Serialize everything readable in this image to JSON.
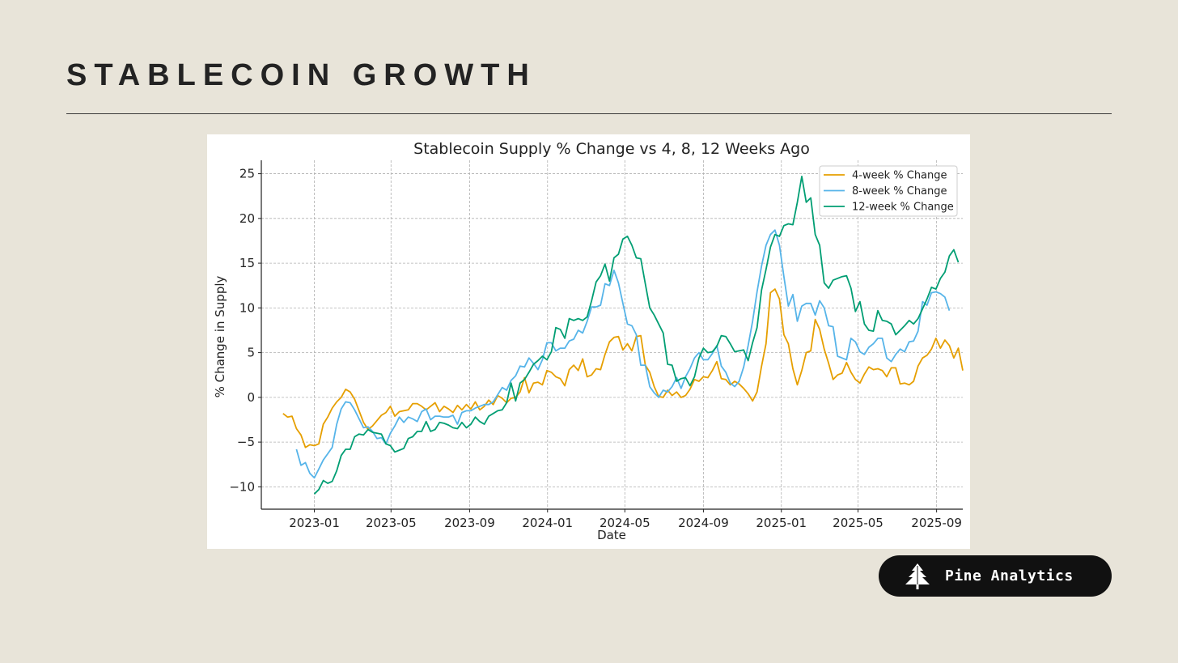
{
  "page": {
    "title": "STABLECOIN GROWTH",
    "brand": "Pine Analytics"
  },
  "colors": {
    "background": "#e8e4d9",
    "series_4w": "#e69f00",
    "series_8w": "#56b4e9",
    "series_12w": "#009e73"
  },
  "chart_data": {
    "type": "line",
    "title": "Stablecoin Supply % Change vs 4, 8, 12 Weeks Ago",
    "xlabel": "Date",
    "ylabel": "% Change in Supply",
    "xlim": [
      "2022-10-10",
      "2025-10-12"
    ],
    "ylim": [
      -12.5,
      26.5
    ],
    "grid": true,
    "legend_position": "top-right",
    "x_ticks": [
      "2023-01",
      "2023-05",
      "2023-09",
      "2024-01",
      "2024-05",
      "2024-09",
      "2025-01",
      "2025-05",
      "2025-09"
    ],
    "y_ticks": [
      -10,
      -5,
      0,
      5,
      10,
      15,
      20,
      25
    ],
    "x_start": "2022-11-13",
    "x_step_days": 7,
    "series": [
      {
        "name": "4-week % Change",
        "color": "#e69f00",
        "start_index": 0,
        "values": [
          -1.8,
          -2.2,
          -2.1,
          -3.5,
          -4.2,
          -5.6,
          -5.3,
          -5.4,
          -5.2,
          -3.0,
          -2.2,
          -1.2,
          -0.5,
          0.0,
          0.9,
          0.6,
          -0.2,
          -1.5,
          -2.8,
          -3.6,
          -3.2,
          -2.6,
          -2.0,
          -1.7,
          -1.0,
          -2.1,
          -1.6,
          -1.5,
          -1.4,
          -0.7,
          -0.7,
          -1.0,
          -1.4,
          -1.0,
          -0.6,
          -1.6,
          -1.0,
          -1.3,
          -1.7,
          -0.9,
          -1.4,
          -0.8,
          -1.3,
          -0.5,
          -1.4,
          -1.0,
          -0.3,
          -0.8,
          0.2,
          -0.1,
          -0.6,
          -0.1,
          0.0,
          0.6,
          2.2,
          0.5,
          1.6,
          1.7,
          1.4,
          3.0,
          2.8,
          2.3,
          2.1,
          1.3,
          3.1,
          3.6,
          3.0,
          4.3,
          2.3,
          2.5,
          3.2,
          3.1,
          4.8,
          6.2,
          6.7,
          6.8,
          5.3,
          6.0,
          5.2,
          6.8,
          6.9,
          3.6,
          2.8,
          1.2,
          0.1,
          0.0,
          0.8,
          0.2,
          0.6,
          0.0,
          0.2,
          0.9,
          2.0,
          1.8,
          2.3,
          2.2,
          3.0,
          4.0,
          2.1,
          2.0,
          1.4,
          1.8,
          1.5,
          1.0,
          0.4,
          -0.4,
          0.6,
          3.5,
          6.0,
          11.7,
          12.1,
          11.0,
          7.0,
          6.0,
          3.2,
          1.4,
          3.0,
          5.0,
          5.2,
          8.7,
          7.6,
          5.4,
          3.8,
          2.0,
          2.5,
          2.7,
          3.9,
          2.8,
          2.0,
          1.6,
          2.6,
          3.4,
          3.1,
          3.2,
          3.0,
          2.3,
          3.3,
          3.3,
          1.5,
          1.6,
          1.4,
          1.8,
          3.5,
          4.4,
          4.7,
          5.4,
          6.6,
          5.5,
          6.4,
          5.8,
          4.4,
          5.5,
          3.0
        ]
      },
      {
        "name": "8-week % Change",
        "color": "#56b4e9",
        "start_index": 3,
        "values": [
          -5.8,
          -7.6,
          -7.3,
          -8.5,
          -9.0,
          -8.0,
          -7.0,
          -6.3,
          -5.6,
          -3.0,
          -1.3,
          -0.5,
          -0.6,
          -1.4,
          -2.4,
          -3.4,
          -3.3,
          -3.8,
          -4.6,
          -4.5,
          -5.2,
          -4.0,
          -3.2,
          -2.2,
          -2.8,
          -2.2,
          -2.4,
          -2.7,
          -1.6,
          -1.3,
          -2.5,
          -2.1,
          -2.1,
          -2.2,
          -2.2,
          -2.0,
          -3.0,
          -1.7,
          -1.5,
          -1.5,
          -1.2,
          -1.0,
          -0.8,
          -0.8,
          -0.5,
          0.3,
          1.1,
          0.8,
          1.9,
          2.4,
          3.5,
          3.4,
          4.4,
          3.8,
          3.1,
          4.2,
          6.1,
          6.1,
          5.2,
          5.5,
          5.5,
          6.3,
          6.5,
          7.5,
          7.2,
          8.5,
          10.1,
          10.1,
          10.3,
          12.7,
          12.5,
          14.2,
          12.8,
          10.5,
          8.2,
          8.0,
          7.0,
          3.6,
          3.6,
          1.2,
          0.5,
          0.0,
          0.8,
          0.6,
          1.2,
          2.2,
          1.0,
          2.3,
          3.2,
          4.4,
          5.0,
          4.2,
          4.2,
          4.9,
          5.8,
          3.5,
          2.8,
          1.6,
          1.2,
          1.8,
          3.4,
          5.8,
          8.5,
          11.8,
          14.7,
          17.0,
          18.2,
          18.7,
          17.0,
          13.5,
          10.2,
          11.5,
          8.5,
          10.2,
          10.5,
          10.5,
          9.2,
          10.8,
          10.0,
          8.0,
          7.9,
          4.6,
          4.4,
          4.2,
          6.6,
          6.2,
          5.1,
          4.8,
          5.6,
          6.0,
          6.6,
          6.6,
          4.4,
          4.0,
          4.8,
          5.4,
          5.1,
          6.2,
          6.3,
          7.4,
          10.7,
          10.3,
          11.7,
          11.8,
          11.6,
          11.2,
          9.7
        ]
      },
      {
        "name": "12-week % Change",
        "color": "#009e73",
        "start_index": 7,
        "values": [
          -10.8,
          -10.3,
          -9.3,
          -9.6,
          -9.4,
          -8.2,
          -6.5,
          -5.8,
          -5.8,
          -4.4,
          -4.1,
          -4.2,
          -3.6,
          -3.9,
          -4.0,
          -4.1,
          -5.2,
          -5.4,
          -6.1,
          -5.9,
          -5.7,
          -4.6,
          -4.4,
          -3.8,
          -3.8,
          -2.7,
          -3.8,
          -3.6,
          -2.8,
          -2.9,
          -3.1,
          -3.4,
          -3.5,
          -2.8,
          -3.4,
          -3.0,
          -2.2,
          -2.7,
          -3.0,
          -2.1,
          -1.8,
          -1.5,
          -1.4,
          -0.6,
          1.6,
          -0.4,
          1.6,
          2.0,
          2.8,
          3.7,
          4.1,
          4.6,
          4.2,
          5.1,
          7.8,
          7.6,
          6.6,
          8.8,
          8.6,
          8.8,
          8.6,
          9.0,
          10.8,
          12.9,
          13.6,
          14.9,
          13.0,
          15.6,
          16.0,
          17.7,
          18.0,
          17.0,
          15.6,
          15.5,
          12.7,
          10.0,
          9.2,
          8.2,
          7.2,
          3.7,
          3.6,
          1.8,
          2.1,
          2.2,
          1.3,
          2.3,
          4.4,
          5.5,
          5.0,
          5.1,
          5.7,
          6.9,
          6.8,
          6.0,
          5.1,
          5.2,
          5.3,
          4.1,
          6.1,
          7.8,
          12.0,
          14.3,
          16.8,
          18.2,
          18.0,
          19.2,
          19.4,
          19.3,
          21.8,
          24.7,
          21.8,
          22.3,
          18.2,
          17.0,
          12.8,
          12.2,
          13.1,
          13.3,
          13.5,
          13.6,
          12.2,
          9.6,
          10.7,
          8.2,
          7.5,
          7.4,
          9.7,
          8.6,
          8.5,
          8.2,
          7.0,
          7.5,
          8.0,
          8.6,
          8.2,
          8.8,
          9.9,
          11.0,
          12.3,
          12.1,
          13.3,
          14.0,
          15.8,
          16.5,
          15.1
        ]
      }
    ]
  }
}
